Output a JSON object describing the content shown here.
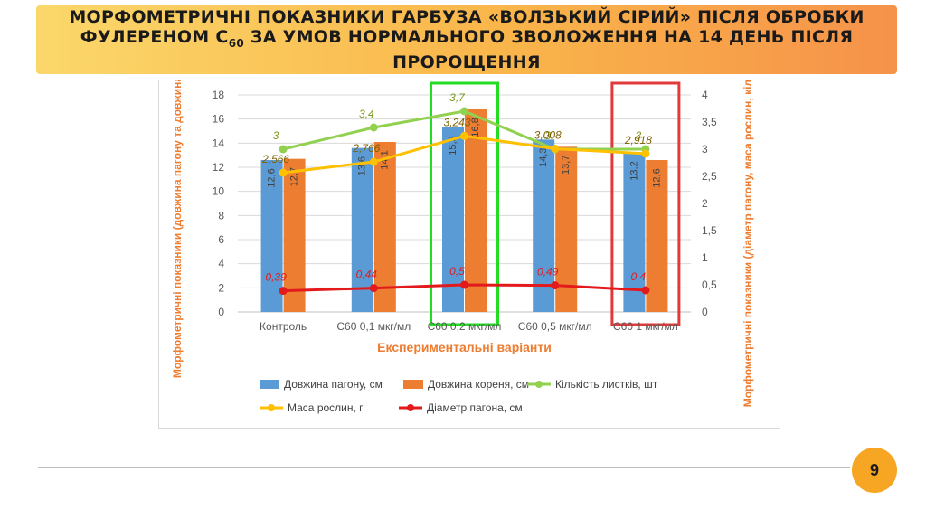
{
  "slide": {
    "title_main": "Морфометричні показники гарбуза «Волзький сірий» після обробки фулереном С",
    "title_sub": "60",
    "title_rest": " за умов нормального зволоження на 14 день після пророщення",
    "page_number": "9",
    "banner_color_left": "#fbd76a",
    "banner_color_right": "#f6924a",
    "page_badge_color": "#f6a623"
  },
  "chart_data": {
    "type": "bar",
    "categories": [
      "Контроль",
      "С60 0,1 мкг/мл",
      "С60 0,2 мкг/мл",
      "С60 0,5 мкг/мл",
      "С60 1 мкг/мл"
    ],
    "xlabel": "Експериментальні варіанти",
    "ylabel": "Морфометричні показники (довжина пагону та довжина кореня),",
    "y2label": "Морфометричні показники (діаметр пагону, маса рослин, кількість листків)",
    "ylim": [
      0,
      18
    ],
    "y_ticks": [
      "0",
      "2",
      "4",
      "6",
      "8",
      "10",
      "12",
      "14",
      "16",
      "18"
    ],
    "y2lim": [
      0,
      4
    ],
    "y2_ticks": [
      "0",
      "0,5",
      "1",
      "1,5",
      "2",
      "2,5",
      "3",
      "3,5",
      "4"
    ],
    "grid": true,
    "legend_position": "bottom",
    "bar_series": [
      {
        "name": "Довжина пагону, см",
        "color": "#5b9bd5",
        "values": [
          12.6,
          13.6,
          15.3,
          14.3,
          13.2
        ],
        "labels": [
          "12,6",
          "13,6",
          "15,3",
          "14,3",
          "13,2"
        ]
      },
      {
        "name": "Довжина кореня, см",
        "color": "#ed7d31",
        "values": [
          12.7,
          14.1,
          16.8,
          13.7,
          12.6
        ],
        "labels": [
          "12,7",
          "14,1",
          "16,8",
          "13,7",
          "12,6"
        ]
      }
    ],
    "line_series": [
      {
        "name": "Кількість листків, шт",
        "color": "#92d050",
        "label_color": "#7a9a1e",
        "axis": "secondary",
        "values": [
          3,
          3.4,
          3.7,
          3,
          3
        ],
        "labels": [
          "3",
          "3,4",
          "3,7",
          "3",
          "3"
        ]
      },
      {
        "name": "Маса рослин, г",
        "color": "#ffc000",
        "label_color": "#7f6000",
        "axis": "secondary",
        "values": [
          2.566,
          2.766,
          3.243,
          3.008,
          2.918
        ],
        "labels": [
          "2,566",
          "2,766",
          "3,243",
          "3,008",
          "2,918"
        ]
      },
      {
        "name": "Діаметр пагона, см",
        "color": "#e31a1c",
        "label_color": "#e31a1c",
        "axis": "secondary",
        "values": [
          0.39,
          0.44,
          0.5,
          0.49,
          0.4
        ],
        "labels": [
          "0,39",
          "0,44",
          "0,5",
          "0,49",
          "0,4"
        ]
      }
    ],
    "highlights": [
      {
        "category": "С60 0,2 мкг/мл",
        "color": "#22dd22"
      },
      {
        "category": "С60 1 мкг/мл",
        "color": "#e23a3a"
      }
    ],
    "axis_title_color": "#ed7d31"
  }
}
